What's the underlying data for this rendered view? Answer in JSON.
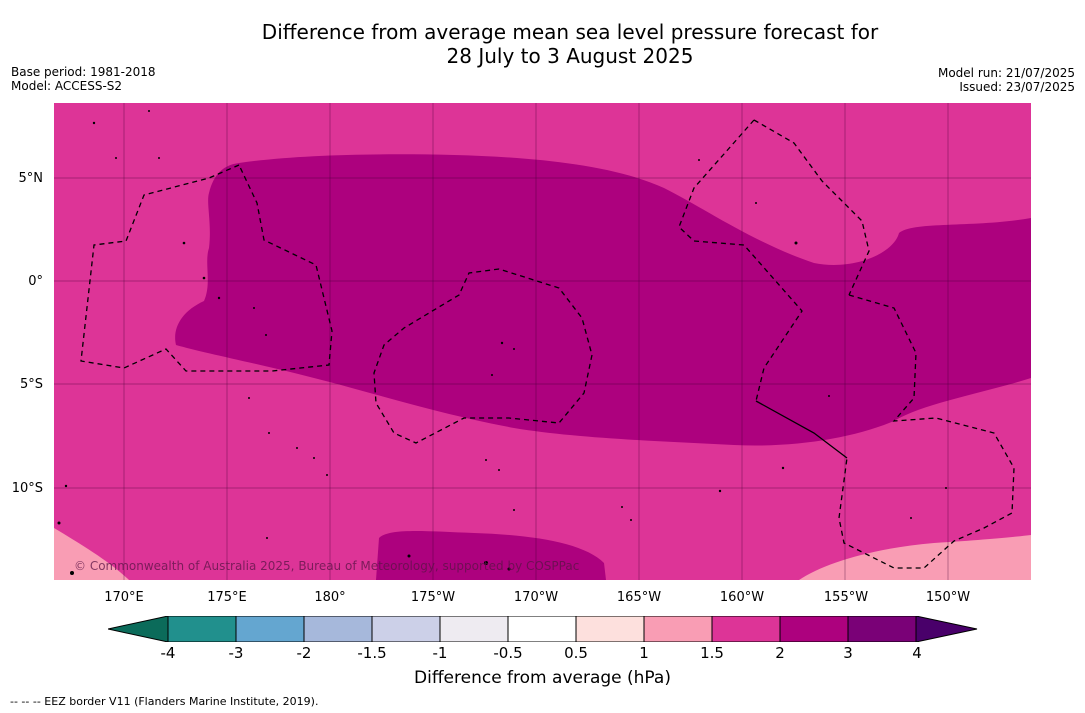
{
  "title": {
    "line1": "Difference from average mean sea level pressure forecast for",
    "line2": "28 July to 3 August 2025"
  },
  "meta_left": {
    "base_period": "Base period: 1981-2018",
    "model": "Model: ACCESS-S2"
  },
  "meta_right": {
    "model_run": "Model run: 21/07/2025",
    "issued": "Issued: 23/07/2025"
  },
  "map": {
    "lat_labels": [
      "5°N",
      "0°",
      "5°S",
      "10°S"
    ],
    "lon_labels": [
      "170°E",
      "175°E",
      "180°",
      "175°W",
      "170°W",
      "165°W",
      "160°W",
      "155°W",
      "150°W"
    ],
    "copyright": "© Commonwealth of Australia 2025, Bureau of Meteorology, supported by COSPPac"
  },
  "colorbar": {
    "title": "Difference from average (hPa)",
    "tick_labels": [
      "-4",
      "-3",
      "-2",
      "-1.5",
      "-1",
      "-0.5",
      "0.5",
      "1",
      "1.5",
      "2",
      "3",
      "4"
    ],
    "colors": {
      "below_-4": "#0b6b5a",
      "-4_-3": "#21908d",
      "-3_-2": "#64a6d0",
      "-2_-1.5": "#a6b8db",
      "-1.5_-1": "#ccd0e8",
      "-1_-0.5": "#eeebf1",
      "-0.5_0.5": "#ffffff",
      "0.5_1": "#fde0dd",
      "1_1.5": "#f99db4",
      "1.5_2": "#dd3497",
      "2_3": "#ad017e",
      "3_4": "#7a0177",
      "above_4": "#49006a"
    }
  },
  "footer": "--  --  -- EEZ border V11 (Flanders Marine Institute, 2019)."
}
